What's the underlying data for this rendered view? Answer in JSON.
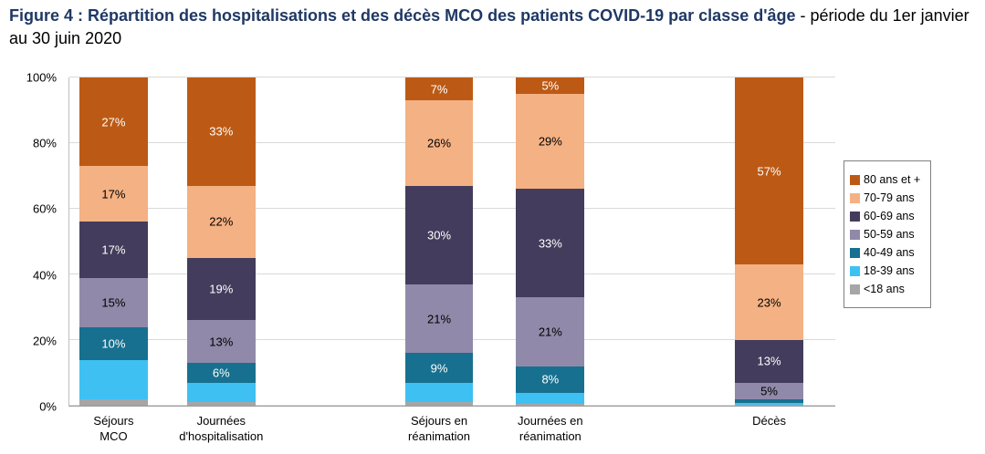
{
  "title": {
    "main": "Figure 4 : Répartition des hospitalisations et des décès MCO des patients COVID-19 par classe d'âge ",
    "suffix": "- période du 1er janvier au 30 juin 2020"
  },
  "colors": {
    "title": "#1F3864",
    "gridline": "#D9D9D9",
    "axis": "#9A9A9A"
  },
  "chart_data": {
    "type": "bar",
    "subtype": "100-percent-stacked-column",
    "title": "Figure 4 : Répartition des hospitalisations et des décès MCO des patients COVID-19 par classe d'âge - période du 1er janvier au 30 juin 2020",
    "xlabel": "",
    "ylabel": "",
    "ylim": [
      0,
      100
    ],
    "yticks": [
      "0%",
      "20%",
      "40%",
      "60%",
      "80%",
      "100%"
    ],
    "grid": true,
    "legend_position": "right",
    "bar_width_pct": 8.93,
    "legend": [
      {
        "label": "80 ans et +",
        "color": "#BC5A15",
        "text_color": "#FFFFFF"
      },
      {
        "label": "70-79 ans",
        "color": "#F4B183",
        "text_color": "#000000"
      },
      {
        "label": "60-69 ans",
        "color": "#433C5C",
        "text_color": "#FFFFFF"
      },
      {
        "label": "50-59 ans",
        "color": "#9189A9",
        "text_color": "#000000"
      },
      {
        "label": "40-49 ans",
        "color": "#17708F",
        "text_color": "#FFFFFF"
      },
      {
        "label": "18-39 ans",
        "color": "#3EC1F2",
        "text_color": "#000000"
      },
      {
        "label": "<18 ans",
        "color": "#A6A6A6",
        "text_color": "#000000"
      }
    ],
    "bars": [
      {
        "category": "Séjours MCO",
        "category_lines": [
          "Séjours",
          "MCO"
        ],
        "left_pct": 1.31,
        "segments": [
          {
            "age": "<18 ans",
            "value": 2,
            "label": ""
          },
          {
            "age": "18-39 ans",
            "value": 12,
            "label": ""
          },
          {
            "age": "40-49 ans",
            "value": 10,
            "label": "10%"
          },
          {
            "age": "50-59 ans",
            "value": 15,
            "label": "15%"
          },
          {
            "age": "60-69 ans",
            "value": 17,
            "label": "17%"
          },
          {
            "age": "70-79 ans",
            "value": 17,
            "label": "17%"
          },
          {
            "age": "80 ans et +",
            "value": 27,
            "label": "27%"
          }
        ]
      },
      {
        "category": "Journées d'hospitalisation",
        "category_lines": [
          "Journées",
          "d'hospitalisation"
        ],
        "left_pct": 15.36,
        "segments": [
          {
            "age": "<18 ans",
            "value": 1,
            "label": ""
          },
          {
            "age": "18-39 ans",
            "value": 6,
            "label": ""
          },
          {
            "age": "40-49 ans",
            "value": 6,
            "label": "6%"
          },
          {
            "age": "50-59 ans",
            "value": 13,
            "label": "13%"
          },
          {
            "age": "60-69 ans",
            "value": 19,
            "label": "19%"
          },
          {
            "age": "70-79 ans",
            "value": 22,
            "label": "22%"
          },
          {
            "age": "80 ans et +",
            "value": 33,
            "label": "33%"
          }
        ]
      },
      {
        "category": "Séjours en réanimation",
        "category_lines": [
          "Séjours en",
          "réanimation"
        ],
        "left_pct": 43.81,
        "segments": [
          {
            "age": "<18 ans",
            "value": 1,
            "label": ""
          },
          {
            "age": "18-39 ans",
            "value": 6,
            "label": ""
          },
          {
            "age": "40-49 ans",
            "value": 9,
            "label": "9%"
          },
          {
            "age": "50-59 ans",
            "value": 21,
            "label": "21%"
          },
          {
            "age": "60-69 ans",
            "value": 30,
            "label": "30%"
          },
          {
            "age": "70-79 ans",
            "value": 26,
            "label": "26%"
          },
          {
            "age": "80 ans et +",
            "value": 7,
            "label": "7%"
          }
        ]
      },
      {
        "category": "Journées en réanimation",
        "category_lines": [
          "Journées en",
          "réanimation"
        ],
        "left_pct": 58.33,
        "segments": [
          {
            "age": "<18 ans",
            "value": 0.5,
            "label": ""
          },
          {
            "age": "18-39 ans",
            "value": 3.5,
            "label": ""
          },
          {
            "age": "40-49 ans",
            "value": 8,
            "label": "8%"
          },
          {
            "age": "50-59 ans",
            "value": 21,
            "label": "21%"
          },
          {
            "age": "60-69 ans",
            "value": 33,
            "label": "33%"
          },
          {
            "age": "70-79 ans",
            "value": 29,
            "label": "29%"
          },
          {
            "age": "80 ans et +",
            "value": 5,
            "label": "5%"
          }
        ]
      },
      {
        "category": "Décès",
        "category_lines": [
          "Décès"
        ],
        "left_pct": 86.9,
        "segments": [
          {
            "age": "<18 ans",
            "value": 0.2,
            "label": ""
          },
          {
            "age": "18-39 ans",
            "value": 0.5,
            "label": ""
          },
          {
            "age": "40-49 ans",
            "value": 1.3,
            "label": ""
          },
          {
            "age": "50-59 ans",
            "value": 5,
            "label": "5%"
          },
          {
            "age": "60-69 ans",
            "value": 13,
            "label": "13%"
          },
          {
            "age": "70-79 ans",
            "value": 23,
            "label": "23%"
          },
          {
            "age": "80 ans et +",
            "value": 57,
            "label": "57%"
          }
        ]
      }
    ]
  }
}
